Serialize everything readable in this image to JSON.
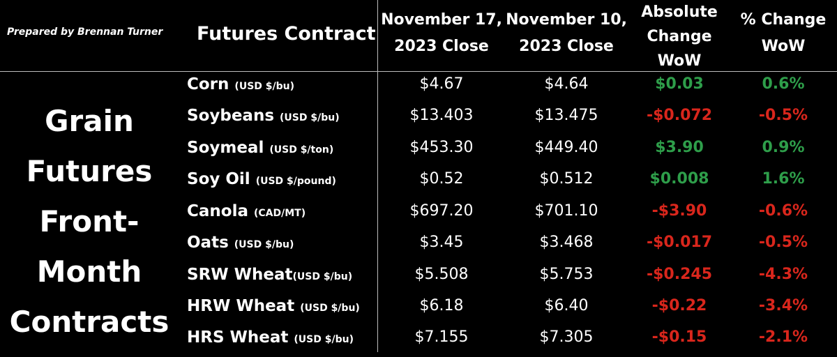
{
  "credit": "Prepared by Brennan Turner",
  "side_title": [
    "Grain",
    "Futures",
    "Front-",
    "Month",
    "Contracts"
  ],
  "headers": {
    "contract": "Futures Contract",
    "current": [
      "November 17,",
      "2023 Close"
    ],
    "previous": [
      "November 10,",
      "2023 Close"
    ],
    "abs_change": [
      "Absolute",
      "Change",
      "WoW"
    ],
    "pct_change": [
      "% Change",
      "WoW"
    ]
  },
  "colors": {
    "positive": "#2e9e4a",
    "negative": "#d9261c",
    "text": "#ffffff",
    "background": "#000000"
  },
  "chart_data": {
    "type": "table",
    "columns": [
      "Futures Contract",
      "November 17, 2023 Close",
      "November 10, 2023 Close",
      "Absolute Change WoW",
      "% Change WoW"
    ],
    "rows": [
      {
        "name": "Corn",
        "unit": "(USD $/bu)",
        "current": "$4.67",
        "previous": "$4.64",
        "abs_change": "$0.03",
        "pct_change": "0.6%",
        "direction": "up"
      },
      {
        "name": "Soybeans",
        "unit": "(USD $/bu)",
        "current": "$13.403",
        "previous": "$13.475",
        "abs_change": "-$0.072",
        "pct_change": "-0.5%",
        "direction": "down"
      },
      {
        "name": "Soymeal",
        "unit": "(USD $/ton)",
        "current": "$453.30",
        "previous": "$449.40",
        "abs_change": "$3.90",
        "pct_change": "0.9%",
        "direction": "up"
      },
      {
        "name": "Soy Oil",
        "unit": "(USD $/pound)",
        "current": "$0.52",
        "previous": "$0.512",
        "abs_change": "$0.008",
        "pct_change": "1.6%",
        "direction": "up"
      },
      {
        "name": "Canola",
        "unit": "(CAD/MT)",
        "current": "$697.20",
        "previous": "$701.10",
        "abs_change": "-$3.90",
        "pct_change": "-0.6%",
        "direction": "down"
      },
      {
        "name": "Oats",
        "unit": "(USD $/bu)",
        "current": "$3.45",
        "previous": "$3.468",
        "abs_change": "-$0.017",
        "pct_change": "-0.5%",
        "direction": "down"
      },
      {
        "name": "SRW Wheat",
        "unit": "(USD $/bu)",
        "current": "$5.508",
        "previous": "$5.753",
        "abs_change": "-$0.245",
        "pct_change": "-4.3%",
        "direction": "down"
      },
      {
        "name": "HRW Wheat",
        "unit": "(USD $/bu)",
        "current": "$6.18",
        "previous": "$6.40",
        "abs_change": "-$0.22",
        "pct_change": "-3.4%",
        "direction": "down"
      },
      {
        "name": "HRS Wheat",
        "unit": "(USD $/bu)",
        "current": "$7.155",
        "previous": "$7.305",
        "abs_change": "-$0.15",
        "pct_change": "-2.1%",
        "direction": "down"
      }
    ]
  }
}
